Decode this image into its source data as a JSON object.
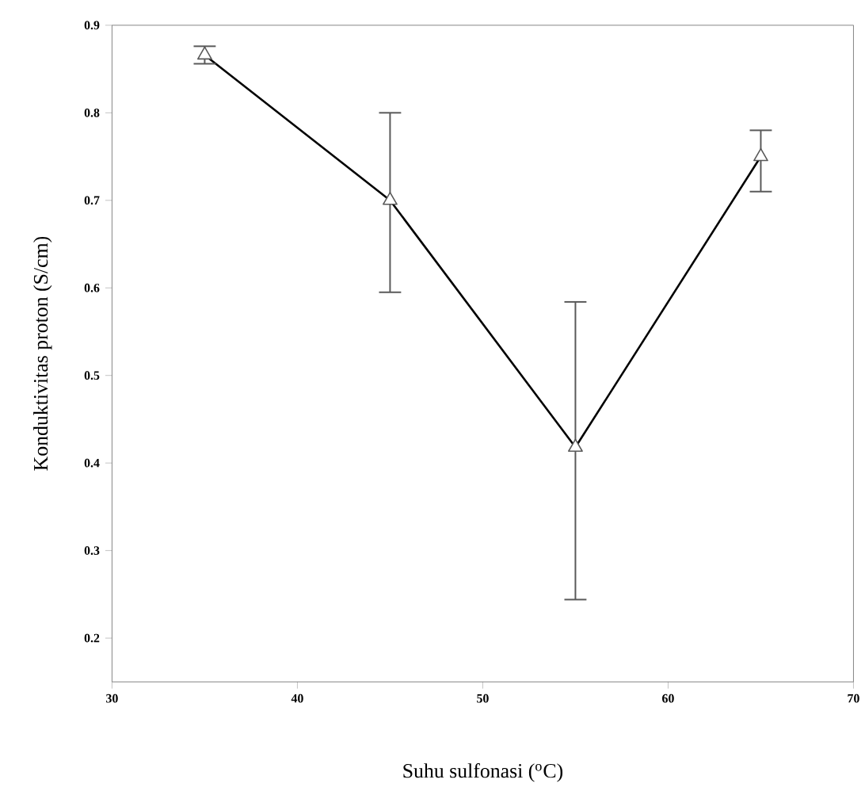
{
  "chart_data": {
    "type": "line",
    "xlabel": "Suhu sulfonasi ($^{o}$C)",
    "ylabel": "Konduktivitas proton (S/cm)",
    "x": [
      35,
      45,
      55,
      65
    ],
    "series": [
      {
        "color": "#000000",
        "values": [
          0.866,
          0.7,
          0.418,
          0.75
        ],
        "errors": [
          [
            0.856,
            0.876
          ],
          [
            0.595,
            0.8
          ],
          [
            0.244,
            0.584
          ],
          [
            0.71,
            0.78
          ]
        ]
      }
    ],
    "xlim": [
      30,
      70
    ],
    "ylim": [
      0.15,
      0.9
    ],
    "xticks": [
      30,
      40,
      50,
      60,
      70
    ],
    "yticks": [
      0.2,
      0.3,
      0.4,
      0.5,
      0.6,
      0.7,
      0.8,
      0.9
    ],
    "marker": "triangle",
    "line_style": "solid",
    "grid": false
  }
}
